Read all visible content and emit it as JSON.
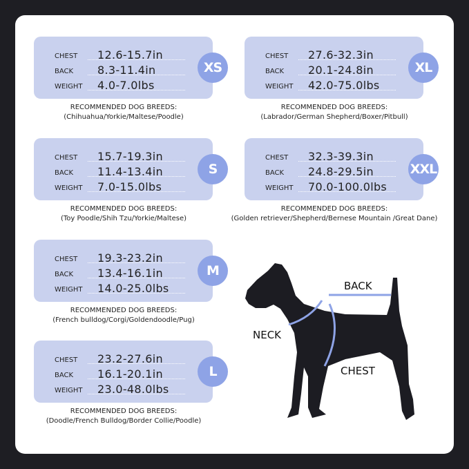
{
  "labels": {
    "chest": "CHEST",
    "back": "BACK",
    "weight": "WEIGHT",
    "recommended": "RECOMMENDED DOG BREEDS:"
  },
  "sizes": [
    {
      "size": "XS",
      "chest": "12.6-15.7in",
      "back": "8.3-11.4in",
      "weight": "4.0-7.0lbs",
      "breeds": "(Chihuahua/Yorkie/Maltese/Poodle)"
    },
    {
      "size": "S",
      "chest": "15.7-19.3in",
      "back": "11.4-13.4in",
      "weight": "7.0-15.0lbs",
      "breeds": "(Toy Poodle/Shih Tzu/Yorkie/Maltese)"
    },
    {
      "size": "M",
      "chest": "19.3-23.2in",
      "back": "13.4-16.1in",
      "weight": "14.0-25.0lbs",
      "breeds": "(French bulldog/Corgi/Goldendoodle/Pug)"
    },
    {
      "size": "L",
      "chest": "23.2-27.6in",
      "back": "16.1-20.1in",
      "weight": "23.0-48.0lbs",
      "breeds": "(Doodle/French Bulldog/Border Collie/Poodle)"
    },
    {
      "size": "XL",
      "chest": "27.6-32.3in",
      "back": "20.1-24.8in",
      "weight": "42.0-75.0lbs",
      "breeds": "(Labrador/German Shepherd/Boxer/Pitbull)"
    },
    {
      "size": "XXL",
      "chest": "32.3-39.3in",
      "back": "24.8-29.5in",
      "weight": "70.0-100.0lbs",
      "breeds": "(Golden retriever/Shepherd/Bernese Mountain /Great Dane)"
    }
  ],
  "diagram": {
    "back": "BACK",
    "neck": "NECK",
    "chest": "CHEST"
  },
  "colors": {
    "background": "#1e1e23",
    "card": "#c9d1ee",
    "badge": "#8ea3e6",
    "measure_line": "#8ea3e6",
    "dog": "#1c1c22"
  }
}
